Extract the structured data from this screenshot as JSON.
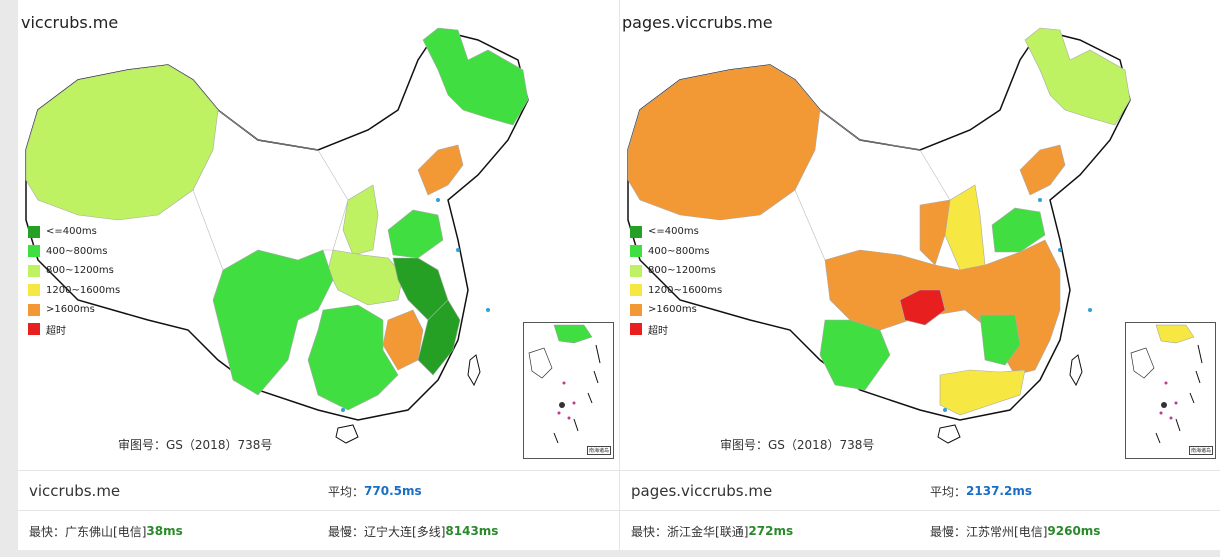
{
  "legend": {
    "items": [
      {
        "label": "<=400ms",
        "color": "#25a025"
      },
      {
        "label": "400~800ms",
        "color": "#41de41"
      },
      {
        "label": "800~1200ms",
        "color": "#bef263"
      },
      {
        "label": "1200~1600ms",
        "color": "#f6e742"
      },
      {
        "label": ">1600ms",
        "color": "#f29935"
      },
      {
        "label": "超时",
        "color": "#e81f1f"
      }
    ]
  },
  "approval_no": "审图号：GS（2018）738号",
  "inset_caption": "南海诸岛",
  "panels": [
    {
      "title": "viccrubs.me",
      "stats": {
        "name": "viccrubs.me",
        "avg_label": "平均：",
        "avg_value": "770.5ms",
        "fastest_label": "最快：",
        "fastest_location": "广东佛山[电信]",
        "fastest_value": "38ms",
        "slowest_label": "最慢：",
        "slowest_location": "辽宁大连[多线]",
        "slowest_value": "8143ms"
      }
    },
    {
      "title": "pages.viccrubs.me",
      "stats": {
        "name": "pages.viccrubs.me",
        "avg_label": "平均：",
        "avg_value": "2137.2ms",
        "fastest_label": "最快：",
        "fastest_location": "浙江金华[联通]",
        "fastest_value": "272ms",
        "slowest_label": "最慢：",
        "slowest_location": "江苏常州[电信]",
        "slowest_value": "9260ms"
      }
    }
  ]
}
